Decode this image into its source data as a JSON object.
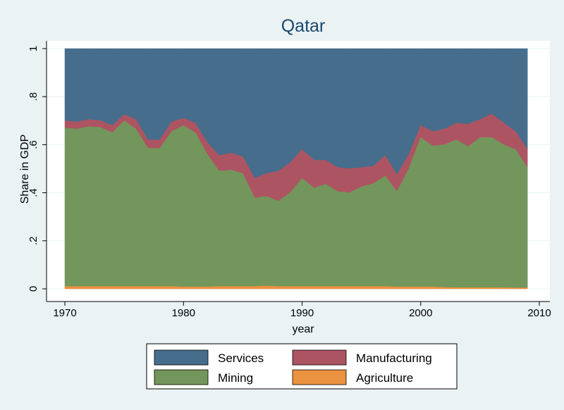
{
  "chart_data": {
    "type": "area",
    "stacked": true,
    "title": "Qatar",
    "xlabel": "year",
    "ylabel": "Share in GDP",
    "xlim": [
      1970,
      2010
    ],
    "ylim": [
      0,
      1
    ],
    "x_ticks": [
      1970,
      1980,
      1990,
      2000,
      2010
    ],
    "x_tick_labels": [
      "1970",
      "1980",
      "1990",
      "2000",
      "2010"
    ],
    "y_ticks": [
      0,
      0.2,
      0.4,
      0.6,
      0.8,
      1
    ],
    "y_tick_labels": [
      "0",
      ".2",
      ".4",
      ".6",
      ".8",
      "1"
    ],
    "grid": true,
    "legend_position": "bottom",
    "x": [
      1970,
      1971,
      1972,
      1973,
      1974,
      1975,
      1976,
      1977,
      1978,
      1979,
      1980,
      1981,
      1982,
      1983,
      1984,
      1985,
      1986,
      1987,
      1988,
      1989,
      1990,
      1991,
      1992,
      1993,
      1994,
      1995,
      1996,
      1997,
      1998,
      1999,
      2000,
      2001,
      2002,
      2003,
      2004,
      2005,
      2006,
      2007,
      2008,
      2009
    ],
    "series": [
      {
        "name": "Agriculture",
        "color": "#ea9240",
        "cumulative_top": [
          0.01,
          0.01,
          0.01,
          0.01,
          0.01,
          0.01,
          0.01,
          0.01,
          0.01,
          0.01,
          0.008,
          0.008,
          0.008,
          0.01,
          0.01,
          0.01,
          0.01,
          0.012,
          0.01,
          0.01,
          0.01,
          0.01,
          0.01,
          0.01,
          0.01,
          0.01,
          0.01,
          0.01,
          0.008,
          0.008,
          0.008,
          0.008,
          0.006,
          0.005,
          0.005,
          0.005,
          0.005,
          0.005,
          0.004,
          0.004
        ]
      },
      {
        "name": "Mining",
        "color": "#73965c",
        "cumulative_top": [
          0.67,
          0.665,
          0.675,
          0.672,
          0.65,
          0.7,
          0.665,
          0.585,
          0.585,
          0.655,
          0.68,
          0.65,
          0.56,
          0.49,
          0.495,
          0.48,
          0.378,
          0.385,
          0.365,
          0.4,
          0.46,
          0.42,
          0.435,
          0.405,
          0.4,
          0.425,
          0.438,
          0.47,
          0.405,
          0.5,
          0.63,
          0.595,
          0.6,
          0.62,
          0.592,
          0.63,
          0.63,
          0.6,
          0.58,
          0.505
        ]
      },
      {
        "name": "Manufacturing",
        "color": "#ad5462",
        "cumulative_top": [
          0.7,
          0.695,
          0.705,
          0.7,
          0.68,
          0.725,
          0.705,
          0.62,
          0.62,
          0.695,
          0.71,
          0.69,
          0.61,
          0.555,
          0.565,
          0.55,
          0.46,
          0.48,
          0.49,
          0.525,
          0.58,
          0.535,
          0.535,
          0.505,
          0.5,
          0.505,
          0.51,
          0.555,
          0.475,
          0.56,
          0.68,
          0.655,
          0.665,
          0.69,
          0.685,
          0.705,
          0.728,
          0.69,
          0.655,
          0.58
        ]
      },
      {
        "name": "Services",
        "color": "#466d8c",
        "cumulative_top": [
          1,
          1,
          1,
          1,
          1,
          1,
          1,
          1,
          1,
          1,
          1,
          1,
          1,
          1,
          1,
          1,
          1,
          1,
          1,
          1,
          1,
          1,
          1,
          1,
          1,
          1,
          1,
          1,
          1,
          1,
          1,
          1,
          1,
          1,
          1,
          1,
          1,
          1,
          1,
          1
        ]
      }
    ],
    "legend": [
      {
        "name": "Services",
        "color": "#466d8c"
      },
      {
        "name": "Manufacturing",
        "color": "#ad5462"
      },
      {
        "name": "Mining",
        "color": "#73965c"
      },
      {
        "name": "Agriculture",
        "color": "#ea9240"
      }
    ]
  }
}
